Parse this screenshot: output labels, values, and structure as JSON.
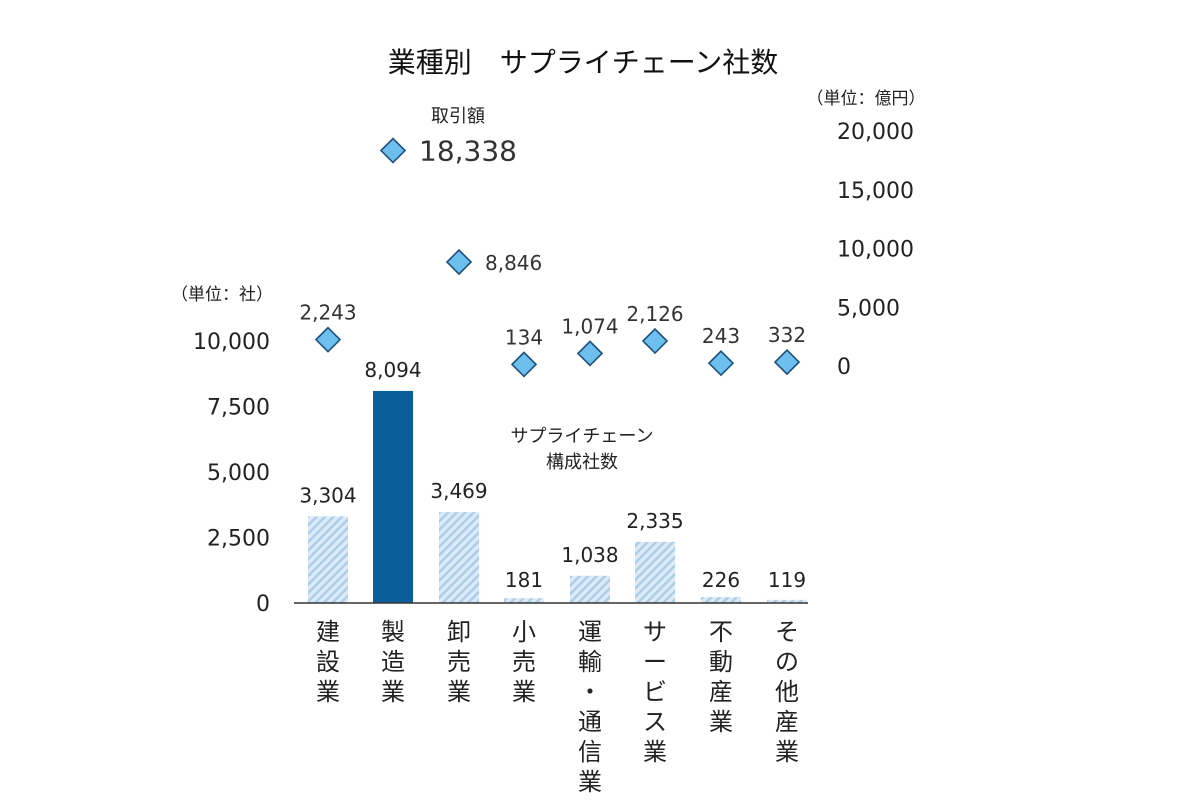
{
  "chart_data": {
    "title": "業種別　サプライチェーン社数",
    "categories": [
      "建設業",
      "製造業",
      "卸売業",
      "小売業",
      "運輸・通信業",
      "サービス業",
      "不動産業",
      "その他産業"
    ],
    "series": [
      {
        "name": "サプライチェーン構成社数",
        "type": "bar",
        "axis": "left",
        "values": [
          3304,
          8094,
          3469,
          181,
          1038,
          2335,
          226,
          119
        ],
        "labels": [
          "3,304",
          "8,094",
          "3,469",
          "181",
          "1,038",
          "2,335",
          "226",
          "119"
        ],
        "highlight_index": 1
      },
      {
        "name": "取引額",
        "type": "scatter",
        "marker": "diamond",
        "axis": "right",
        "values": [
          2243,
          18338,
          8846,
          134,
          1074,
          2126,
          243,
          332
        ],
        "labels": [
          "2,243",
          "18,338",
          "8,846",
          "134",
          "1,074",
          "2,126",
          "243",
          "332"
        ]
      }
    ],
    "left_axis": {
      "unit": "（単位：社）",
      "range": [
        0,
        10000
      ],
      "ticks": [
        0,
        2500,
        5000,
        7500,
        10000
      ],
      "tick_labels": [
        "0",
        "2,500",
        "5,000",
        "7,500",
        "10,000"
      ]
    },
    "right_axis": {
      "unit": "（単位：億円）",
      "range": [
        0,
        20000
      ],
      "ticks": [
        0,
        5000,
        10000,
        15000,
        20000
      ],
      "tick_labels": [
        "0",
        "5,000",
        "10,000",
        "15,000",
        "20,000"
      ]
    },
    "annotations": {
      "bar_series_label_line1": "サプライチェーン",
      "bar_series_label_line2": "構成社数",
      "scatter_series_label": "取引額"
    },
    "colors": {
      "highlight_bar": "#0a5f9a",
      "hatched_bar_bg": "#dbeaf6",
      "hatched_bar_stripe": "#a9cdea",
      "diamond_fill": "#6dc0ee",
      "diamond_stroke": "#1d4f7a"
    },
    "grid": false
  }
}
